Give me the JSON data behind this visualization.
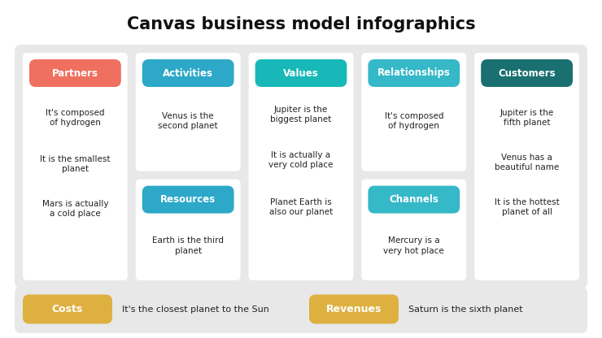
{
  "title": "Canvas business model infographics",
  "title_fontsize": 15,
  "bg_color": "#e8e8e8",
  "outer_bg": "#ffffff",
  "columns": [
    {
      "label": "Partners",
      "label_color": "#f07060",
      "texts": [
        "It's composed\nof hydrogen",
        "It is the smallest\nplanet",
        "Mars is actually\na cold place"
      ],
      "has_sub": false
    },
    {
      "label": "Activities",
      "label_color": "#2da8c8",
      "texts": [
        "Venus is the\nsecond planet"
      ],
      "has_sub": true,
      "sub_label": "Resources",
      "sub_label_color": "#2da8c8",
      "sub_text": "Earth is the third\nplanet"
    },
    {
      "label": "Values",
      "label_color": "#18b8b8",
      "texts": [
        "Jupiter is the\nbiggest planet",
        "It is actually a\nvery cold place",
        "Planet Earth is\nalso our planet"
      ],
      "has_sub": false
    },
    {
      "label": "Relationships",
      "label_color": "#35b8c8",
      "texts": [
        "It's composed\nof hydrogen"
      ],
      "has_sub": true,
      "sub_label": "Channels",
      "sub_label_color": "#35b8c8",
      "sub_text": "Mercury is a\nvery hot place"
    },
    {
      "label": "Customers",
      "label_color": "#1a7070",
      "texts": [
        "Jupiter is the\nfifth planet",
        "Venus has a\nbeautiful name",
        "It is the hottest\nplanet of all"
      ],
      "has_sub": false
    }
  ],
  "bottom_items": [
    {
      "label": "Costs",
      "label_color": "#ddb040",
      "text": "It's the closest planet to the Sun"
    },
    {
      "label": "Revenues",
      "label_color": "#ddb040",
      "text": "Saturn is the sixth planet"
    }
  ],
  "label_fontsize": 8.5,
  "body_fontsize": 7.5
}
